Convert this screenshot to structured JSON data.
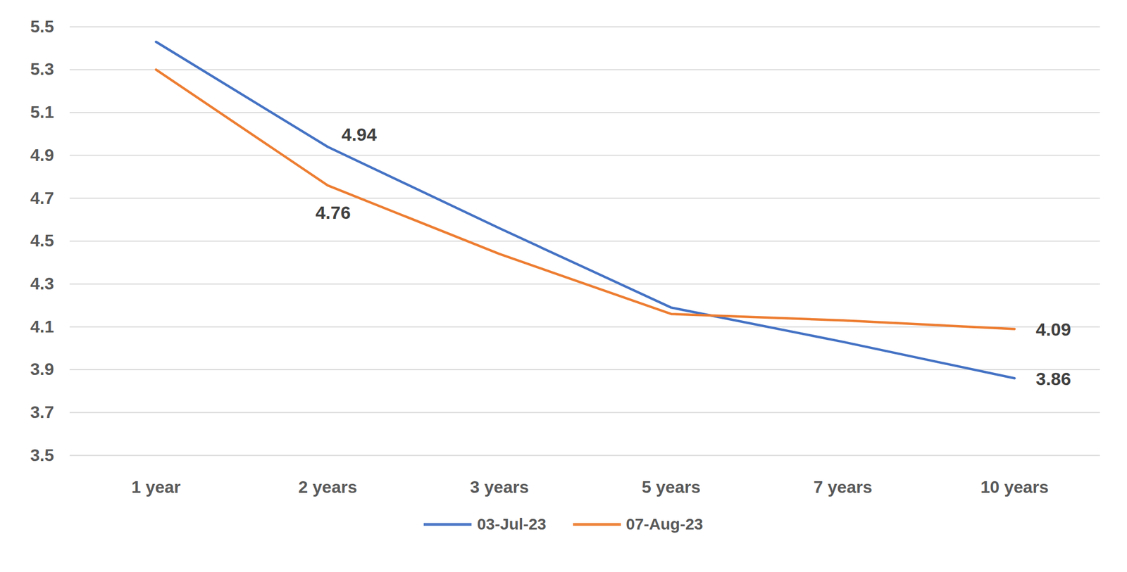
{
  "chart_data": {
    "type": "line",
    "categories": [
      "1 year",
      "2 years",
      "3 years",
      "5 years",
      "7 years",
      "10 years"
    ],
    "series": [
      {
        "name": "03-Jul-23",
        "color": "#4472c4",
        "values": [
          5.43,
          4.94,
          4.56,
          4.19,
          4.03,
          3.86
        ],
        "value_labels": [
          null,
          "4.94",
          null,
          null,
          null,
          "3.86"
        ]
      },
      {
        "name": "07-Aug-23",
        "color": "#ed7d31",
        "values": [
          5.3,
          4.76,
          4.44,
          4.16,
          4.13,
          4.09
        ],
        "value_labels": [
          null,
          "4.76",
          null,
          null,
          null,
          "4.09"
        ]
      }
    ],
    "ylim": [
      3.5,
      5.5
    ],
    "yticks": [
      3.5,
      3.7,
      3.9,
      4.1,
      4.3,
      4.5,
      4.7,
      4.9,
      5.1,
      5.3,
      5.5
    ],
    "grid": true,
    "legend": "bottom",
    "data_labels": true
  }
}
